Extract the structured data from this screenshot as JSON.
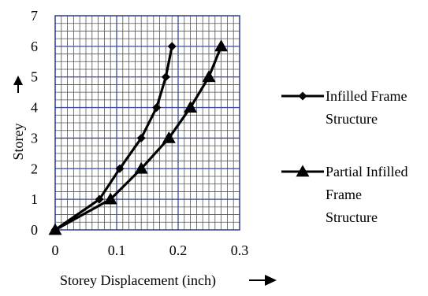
{
  "chart_data": {
    "type": "line",
    "title": "",
    "xlabel": "Storey Displacement (inch)",
    "ylabel": "Storey",
    "xlim": [
      0,
      0.3
    ],
    "ylim": [
      0,
      7
    ],
    "x_ticks": [
      "0",
      "0.1",
      "0.2",
      "0.3"
    ],
    "y_ticks": [
      "0",
      "1",
      "2",
      "3",
      "4",
      "5",
      "6",
      "7"
    ],
    "grid": true,
    "legend_position": "right",
    "series": [
      {
        "name": "Infilled Frame Structure",
        "legend_lines": [
          "Infilled Frame",
          "Structure"
        ],
        "marker": "diamond",
        "color": "#000000",
        "x": [
          0,
          0.072,
          0.105,
          0.14,
          0.165,
          0.18,
          0.19
        ],
        "y": [
          0,
          1,
          2,
          3,
          4,
          5,
          6
        ]
      },
      {
        "name": "Partial Infilled Frame Structure",
        "legend_lines": [
          "Partial Infilled",
          "Frame",
          "Structure"
        ],
        "marker": "triangle",
        "color": "#000000",
        "x": [
          0,
          0.09,
          0.14,
          0.185,
          0.22,
          0.25,
          0.27
        ],
        "y": [
          0,
          1,
          2,
          3,
          4,
          5,
          6
        ]
      }
    ]
  }
}
